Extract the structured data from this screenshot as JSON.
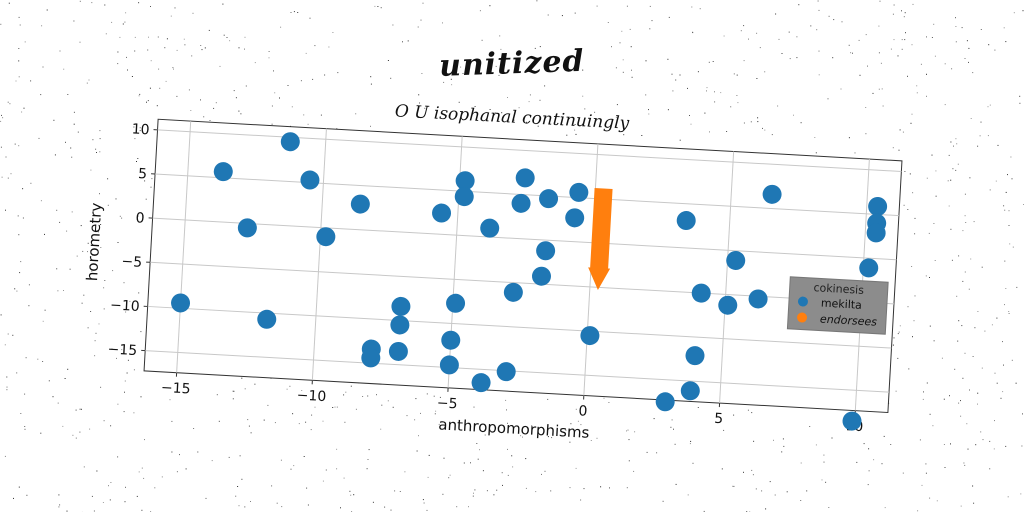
{
  "chart_data": {
    "type": "scatter",
    "title": "unitized",
    "subtitle": "O U isophanal continuingly",
    "xlabel": "anthropomorphisms",
    "ylabel": "horometry",
    "xlim": [
      -16.2,
      11.2
    ],
    "ylim": [
      -17.3,
      11.2
    ],
    "x_ticks": [
      -15,
      -10,
      -5,
      0,
      5,
      10
    ],
    "x_tick_labels": [
      "−15",
      "−10",
      "−5",
      "0",
      "5",
      "10"
    ],
    "y_ticks": [
      -15,
      -10,
      -5,
      0,
      5,
      10
    ],
    "y_tick_labels": [
      "−15",
      "−10",
      "−5",
      "0",
      "5",
      "10"
    ],
    "grid": true,
    "legend": {
      "title": "cokinesis",
      "placement": "right",
      "entries": [
        {
          "label": "mekilta",
          "color": "#1f77b4"
        },
        {
          "label": "endorsees",
          "color": "#ff7f0e"
        }
      ]
    },
    "series": [
      {
        "name": "mekilta",
        "color": "#1f77b4",
        "points": [
          [
            -11.3,
            9.5
          ],
          [
            -13.7,
            5.7
          ],
          [
            -10.5,
            5.3
          ],
          [
            -12.7,
            -0.5
          ],
          [
            -9.8,
            -1.0
          ],
          [
            -8.6,
            2.9
          ],
          [
            -5.6,
            2.4
          ],
          [
            -4.8,
            6.2
          ],
          [
            -4.8,
            4.4
          ],
          [
            -3.8,
            1.0
          ],
          [
            -2.6,
            6.9
          ],
          [
            -2.7,
            4.0
          ],
          [
            -1.7,
            4.7
          ],
          [
            -0.6,
            5.6
          ],
          [
            -0.7,
            2.7
          ],
          [
            -1.7,
            -1.2
          ],
          [
            -1.8,
            -4.1
          ],
          [
            -2.8,
            -6.1
          ],
          [
            -4.9,
            -7.7
          ],
          [
            -6.9,
            -8.4
          ],
          [
            -6.9,
            -10.5
          ],
          [
            -5.0,
            -11.9
          ],
          [
            -6.9,
            -13.5
          ],
          [
            -7.9,
            -13.4
          ],
          [
            -7.9,
            -14.4
          ],
          [
            -5.0,
            -14.7
          ],
          [
            -3.8,
            -16.5
          ],
          [
            -2.9,
            -15.1
          ],
          [
            0.1,
            -10.5
          ],
          [
            3.4,
            3.1
          ],
          [
            6.5,
            6.6
          ],
          [
            10.4,
            5.9
          ],
          [
            10.4,
            4.0
          ],
          [
            10.4,
            2.9
          ],
          [
            5.3,
            -1.1
          ],
          [
            10.2,
            -1.1
          ],
          [
            4.1,
            -5.0
          ],
          [
            5.1,
            -6.2
          ],
          [
            6.2,
            -5.3
          ],
          [
            4.0,
            -12.1
          ],
          [
            3.9,
            -16.1
          ],
          [
            3.0,
            -17.5
          ],
          [
            -15.0,
            -9.4
          ],
          [
            -11.8,
            -10.7
          ],
          [
            9.9,
            -18.5
          ]
        ]
      },
      {
        "name": "endorsees",
        "color": "#ff7f0e",
        "shape": "arrow",
        "arrow": {
          "x": 0.3,
          "y_start": 6.2,
          "y_end": -5.3
        }
      }
    ]
  }
}
